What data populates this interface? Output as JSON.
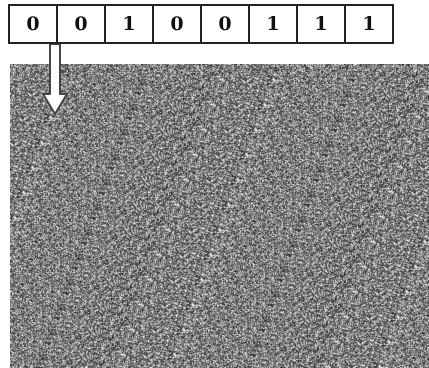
{
  "bits": [
    "0",
    "0",
    "1",
    "0",
    "0",
    "1",
    "1",
    "1"
  ],
  "noise_image": {
    "description_icon": "random-noise-texture",
    "base_color": "#7a7a7a"
  },
  "arrow": {
    "icon": "down-arrow-icon",
    "fill": "#ffffff",
    "stroke": "#444444"
  }
}
